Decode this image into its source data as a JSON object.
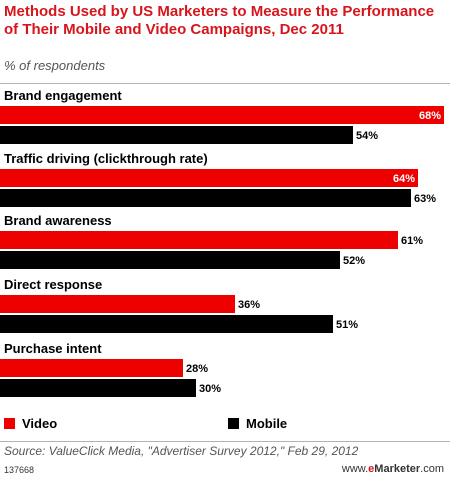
{
  "header": {
    "title": "Methods Used by US Marketers to Measure the Performance of Their Mobile and Video Campaigns, Dec 2011",
    "subtitle": "% of respondents"
  },
  "chart_data": {
    "type": "bar",
    "orientation": "horizontal",
    "categories": [
      "Brand engagement",
      "Traffic driving (clickthrough rate)",
      "Brand awareness",
      "Direct response",
      "Purchase intent"
    ],
    "series": [
      {
        "name": "Video",
        "values": [
          68,
          64,
          61,
          36,
          28
        ],
        "labels": [
          "68%",
          "64%",
          "61%",
          "36%",
          "28%"
        ],
        "color": "#ee0000"
      },
      {
        "name": "Mobile",
        "values": [
          54,
          63,
          52,
          51,
          30
        ],
        "labels": [
          "54%",
          "63%",
          "52%",
          "51%",
          "30%"
        ],
        "color": "#000000"
      }
    ],
    "xlim": [
      0,
      68
    ],
    "grid": false,
    "legend": "bottom-left"
  },
  "footer": {
    "source": "Source: ValueClick Media, \"Advertiser Survey 2012,\" Feb 29, 2012",
    "chart_id": "137668",
    "brand_prefix": "www.",
    "brand_e": "e",
    "brand_name": "Marketer",
    "brand_suffix": ".com"
  }
}
